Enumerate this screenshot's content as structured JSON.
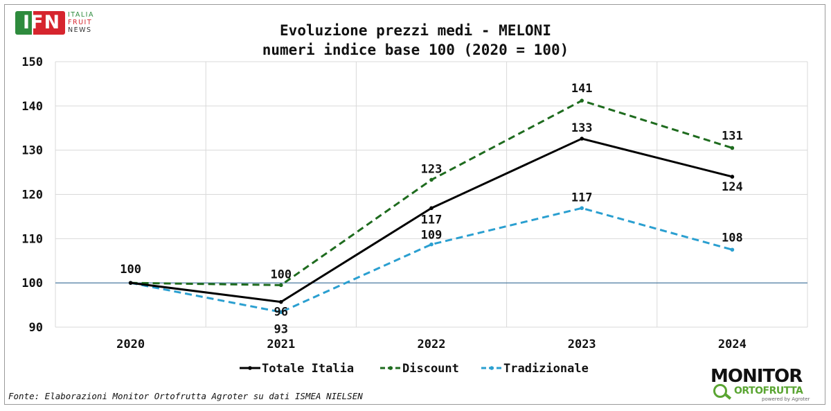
{
  "title": "Evoluzione prezzi medi - MELONI",
  "subtitle": "numeri indice base 100 (2020 = 100)",
  "source": "Fonte: Elaborazioni Monitor Ortofrutta Agroter su dati ISMEA NIELSEN",
  "logos": {
    "ifn_main": "IFN",
    "ifn_line1": "ITALIA",
    "ifn_line2": "FRUIT",
    "ifn_line3": "NEWS",
    "monitor_main": "MONITOR",
    "monitor_sub": "ORTOFRUTTA",
    "monitor_powered": "powered by Agroter"
  },
  "chart_data": {
    "type": "line",
    "title": "Evoluzione prezzi medi - MELONI",
    "subtitle": "numeri indice base 100 (2020 = 100)",
    "categories": [
      "2020",
      "2021",
      "2022",
      "2023",
      "2024"
    ],
    "ylim": [
      90,
      150
    ],
    "yticks": [
      90,
      100,
      110,
      120,
      130,
      140,
      150
    ],
    "grid": true,
    "reference_line": 100,
    "legend_position": "bottom",
    "series": [
      {
        "name": "Totale Italia",
        "values": [
          100,
          95.7,
          116.9,
          132.6,
          124.0
        ],
        "labels": [
          "100",
          "96",
          "117",
          "133",
          "124"
        ],
        "color": "#000000",
        "style": "solid"
      },
      {
        "name": "Discount",
        "values": [
          100,
          99.5,
          123.3,
          141.2,
          130.5
        ],
        "labels": [
          "",
          "100",
          "123",
          "141",
          "131"
        ],
        "color": "#1e6b1e",
        "style": "dashed"
      },
      {
        "name": "Tradizionale",
        "values": [
          100,
          93.4,
          108.7,
          116.9,
          107.5
        ],
        "labels": [
          "",
          "93",
          "109",
          "117",
          "108"
        ],
        "color": "#2a9fd0",
        "style": "dashed"
      }
    ]
  }
}
